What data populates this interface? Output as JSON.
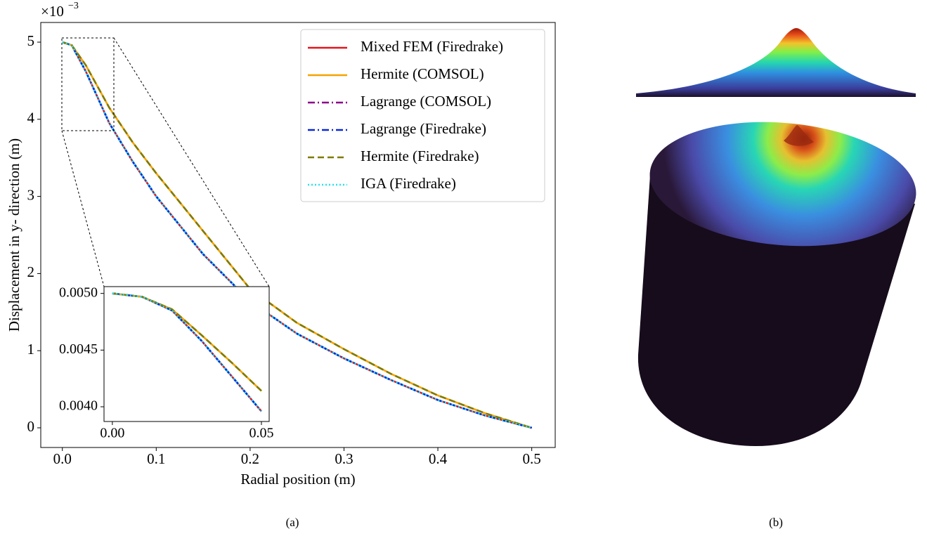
{
  "chart_data": {
    "type": "line",
    "x_label": "Radial position (m)",
    "y_label": "Displacement in y- direction (m)",
    "y_offset_base": "×10",
    "y_offset_exponent": "−3",
    "x": [
      0,
      0.01,
      0.025,
      0.05,
      0.075,
      0.1,
      0.15,
      0.2,
      0.25,
      0.3,
      0.35,
      0.4,
      0.45,
      0.5
    ],
    "series": [
      {
        "name": "Mixed FEM (Firedrake)",
        "color": "#e8141a",
        "dash": "solid",
        "values": [
          5.0,
          4.96,
          4.62,
          3.95,
          3.45,
          3.0,
          2.25,
          1.64,
          1.22,
          0.9,
          0.62,
          0.36,
          0.16,
          0
        ]
      },
      {
        "name": "Hermite (COMSOL)",
        "color": "#f5a300",
        "dash": "solid",
        "values": [
          5.0,
          4.96,
          4.7,
          4.15,
          3.7,
          3.3,
          2.55,
          1.8,
          1.36,
          1.02,
          0.7,
          0.42,
          0.19,
          0
        ]
      },
      {
        "name": "Lagrange (COMSOL)",
        "color": "#8b008b",
        "dash": "dashdot",
        "values": [
          5.0,
          4.96,
          4.62,
          3.95,
          3.45,
          3.0,
          2.25,
          1.64,
          1.22,
          0.9,
          0.62,
          0.36,
          0.16,
          0
        ]
      },
      {
        "name": "Lagrange (Firedrake)",
        "color": "#0a28d8",
        "dash": "dashdot",
        "values": [
          5.0,
          4.96,
          4.62,
          3.95,
          3.45,
          3.0,
          2.25,
          1.64,
          1.22,
          0.9,
          0.62,
          0.36,
          0.16,
          0
        ]
      },
      {
        "name": "Hermite (Firedrake)",
        "color": "#7f7a00",
        "dash": "dashed",
        "values": [
          5.0,
          4.96,
          4.7,
          4.15,
          3.7,
          3.3,
          2.55,
          1.8,
          1.36,
          1.02,
          0.7,
          0.42,
          0.19,
          0
        ]
      },
      {
        "name": "IGA (Firedrake)",
        "color": "#22e4f0",
        "dash": "dotted",
        "values": [
          5.0,
          4.96,
          4.62,
          3.95,
          3.45,
          3.0,
          2.25,
          1.64,
          1.22,
          0.9,
          0.62,
          0.36,
          0.16,
          0
        ]
      }
    ],
    "xlim": [
      -0.023,
      0.525
    ],
    "ylim": [
      -0.255,
      5.255
    ],
    "xticks": [
      {
        "value": 0,
        "label": "0.0"
      },
      {
        "value": 0.1,
        "label": "0.1"
      },
      {
        "value": 0.2,
        "label": "0.2"
      },
      {
        "value": 0.3,
        "label": "0.3"
      },
      {
        "value": 0.4,
        "label": "0.4"
      },
      {
        "value": 0.5,
        "label": "0.5"
      }
    ],
    "yticks": [
      0,
      1,
      2,
      3,
      4,
      5
    ],
    "legend": "upper right",
    "inset": {
      "x": [
        0,
        0.01,
        0.02,
        0.03,
        0.04,
        0.05
      ],
      "series": [
        {
          "color": "#e8141a",
          "dash": "solid",
          "values": [
            0.005,
            0.00497,
            0.00485,
            0.00458,
            0.00427,
            0.00396
          ]
        },
        {
          "color": "#f5a300",
          "dash": "solid",
          "values": [
            0.005,
            0.00497,
            0.00486,
            0.00463,
            0.00439,
            0.00414
          ]
        },
        {
          "color": "#8b008b",
          "dash": "dashdot",
          "values": [
            0.005,
            0.00497,
            0.00485,
            0.00458,
            0.00427,
            0.00396
          ]
        },
        {
          "color": "#0a28d8",
          "dash": "dashdot",
          "values": [
            0.005,
            0.00497,
            0.00485,
            0.00458,
            0.00427,
            0.00396
          ]
        },
        {
          "color": "#7f7a00",
          "dash": "dashed",
          "values": [
            0.005,
            0.00497,
            0.00486,
            0.00463,
            0.00439,
            0.00414
          ]
        },
        {
          "color": "#22e4f0",
          "dash": "dotted",
          "values": [
            0.005,
            0.00497,
            0.00485,
            0.00458,
            0.00427,
            0.00396
          ]
        }
      ],
      "xlim": [
        -0.0028,
        0.0526
      ],
      "ylim": [
        0.00387,
        0.00506
      ],
      "xticks": [
        {
          "value": 0,
          "label": "0.00"
        },
        {
          "value": 0.05,
          "label": "0.05"
        }
      ],
      "yticks": [
        {
          "value": 0.004,
          "label": "0.0040"
        },
        {
          "value": 0.0045,
          "label": "0.0045"
        },
        {
          "value": 0.005,
          "label": "0.0050"
        }
      ]
    }
  },
  "captions": {
    "left": "(a)",
    "right": "(b)"
  }
}
